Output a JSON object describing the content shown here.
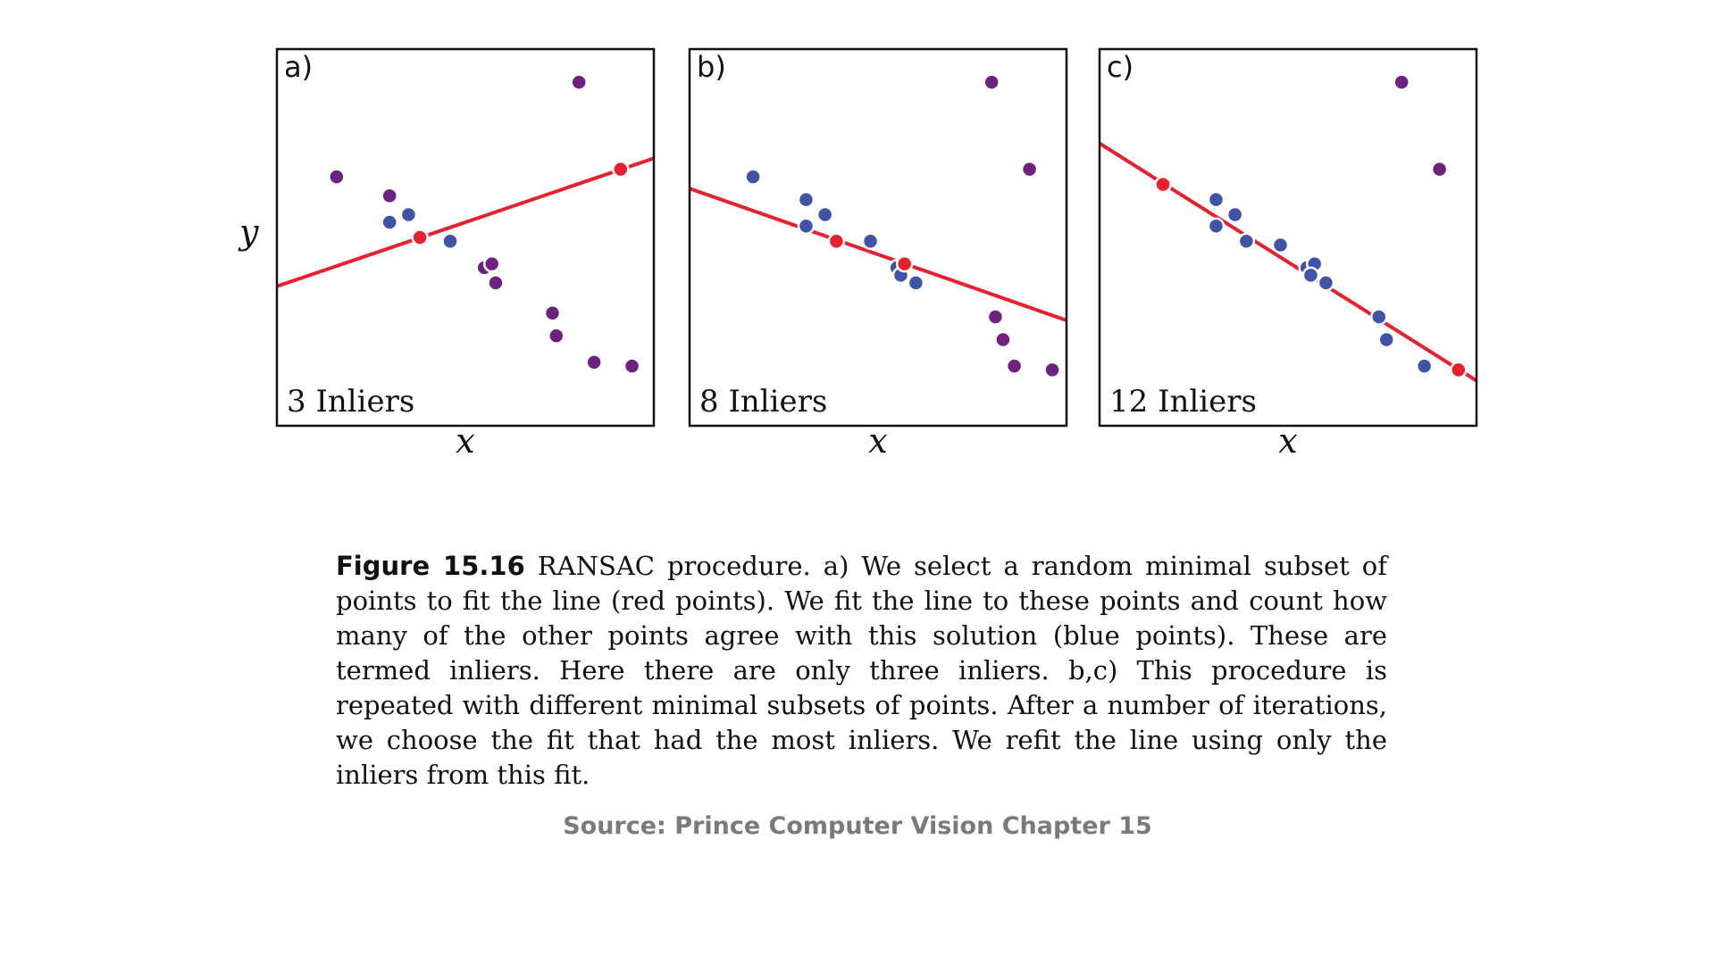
{
  "figure": {
    "y_axis_label": "y",
    "caption_number": "Figure 15.16",
    "caption_text": "RANSAC procedure. a) We select a random minimal subset of points to fit the line (red points). We fit the line to these points and count how many of the other points agree with this solution (blue points). These are termed inliers. Here there are only three inliers. b,c) This procedure is repeated with different minimal subsets of points. After a number of iterations, we choose the fit that had the most inliers. We refit the line using only the inliers from this fit.",
    "source": "Source: Prince Computer Vision Chapter 15"
  },
  "colors": {
    "line": "#e8202e",
    "selected": "#e8202e",
    "inlier": "#3f54a8",
    "outlier": "#6d2282",
    "frame": "#111111"
  },
  "chart_data": [
    {
      "type": "scatter",
      "panel": "a)",
      "inlier_label": "3 Inliers",
      "xlabel": "x",
      "ylabel": "y",
      "xlim": [
        0,
        10
      ],
      "ylim": [
        0,
        10
      ],
      "grid": false,
      "line": {
        "x1": 0,
        "y1": 3.7,
        "x2": 10,
        "y2": 7.1
      },
      "series": [
        {
          "role": "selected",
          "points": [
            [
              3.8,
              5.0
            ],
            [
              9.1,
              6.8
            ]
          ]
        },
        {
          "role": "inlier",
          "points": [
            [
              3.0,
              5.4
            ],
            [
              3.5,
              5.6
            ],
            [
              4.6,
              4.9
            ]
          ]
        },
        {
          "role": "outlier",
          "points": [
            [
              1.6,
              6.6
            ],
            [
              3.0,
              6.1
            ],
            [
              5.5,
              4.2
            ],
            [
              5.7,
              4.3
            ],
            [
              5.8,
              3.8
            ],
            [
              7.3,
              3.0
            ],
            [
              7.4,
              2.4
            ],
            [
              8.4,
              1.7
            ],
            [
              9.4,
              1.6
            ],
            [
              8.0,
              9.1
            ]
          ]
        }
      ]
    },
    {
      "type": "scatter",
      "panel": "b)",
      "inlier_label": "8 Inliers",
      "xlabel": "x",
      "ylabel": "y",
      "xlim": [
        0,
        10
      ],
      "ylim": [
        0,
        10
      ],
      "grid": false,
      "line": {
        "x1": 0,
        "y1": 6.3,
        "x2": 10,
        "y2": 2.8
      },
      "series": [
        {
          "role": "selected",
          "points": [
            [
              3.9,
              4.9
            ],
            [
              5.7,
              4.3
            ]
          ]
        },
        {
          "role": "inlier",
          "points": [
            [
              1.7,
              6.6
            ],
            [
              3.1,
              6.0
            ],
            [
              3.6,
              5.6
            ],
            [
              3.1,
              5.3
            ],
            [
              4.8,
              4.9
            ],
            [
              5.5,
              4.2
            ],
            [
              5.6,
              4.0
            ],
            [
              6.0,
              3.8
            ]
          ]
        },
        {
          "role": "outlier",
          "points": [
            [
              8.1,
              2.9
            ],
            [
              8.3,
              2.3
            ],
            [
              8.6,
              1.6
            ],
            [
              9.6,
              1.5
            ],
            [
              8.0,
              9.1
            ],
            [
              9.0,
              6.8
            ]
          ]
        }
      ]
    },
    {
      "type": "scatter",
      "panel": "c)",
      "inlier_label": "12 Inliers",
      "xlabel": "x",
      "ylabel": "y",
      "xlim": [
        0,
        10
      ],
      "ylim": [
        0,
        10
      ],
      "grid": false,
      "line": {
        "x1": 0,
        "y1": 7.5,
        "x2": 10,
        "y2": 1.2
      },
      "series": [
        {
          "role": "selected",
          "points": [
            [
              1.7,
              6.4
            ],
            [
              9.5,
              1.5
            ]
          ]
        },
        {
          "role": "inlier",
          "points": [
            [
              3.1,
              6.0
            ],
            [
              3.6,
              5.6
            ],
            [
              3.1,
              5.3
            ],
            [
              3.9,
              4.9
            ],
            [
              4.8,
              4.8
            ],
            [
              5.5,
              4.2
            ],
            [
              5.7,
              4.3
            ],
            [
              5.6,
              4.0
            ],
            [
              6.0,
              3.8
            ],
            [
              7.4,
              2.9
            ],
            [
              7.6,
              2.3
            ],
            [
              8.6,
              1.6
            ]
          ]
        },
        {
          "role": "outlier",
          "points": [
            [
              8.0,
              9.1
            ],
            [
              9.0,
              6.8
            ]
          ]
        }
      ]
    }
  ]
}
